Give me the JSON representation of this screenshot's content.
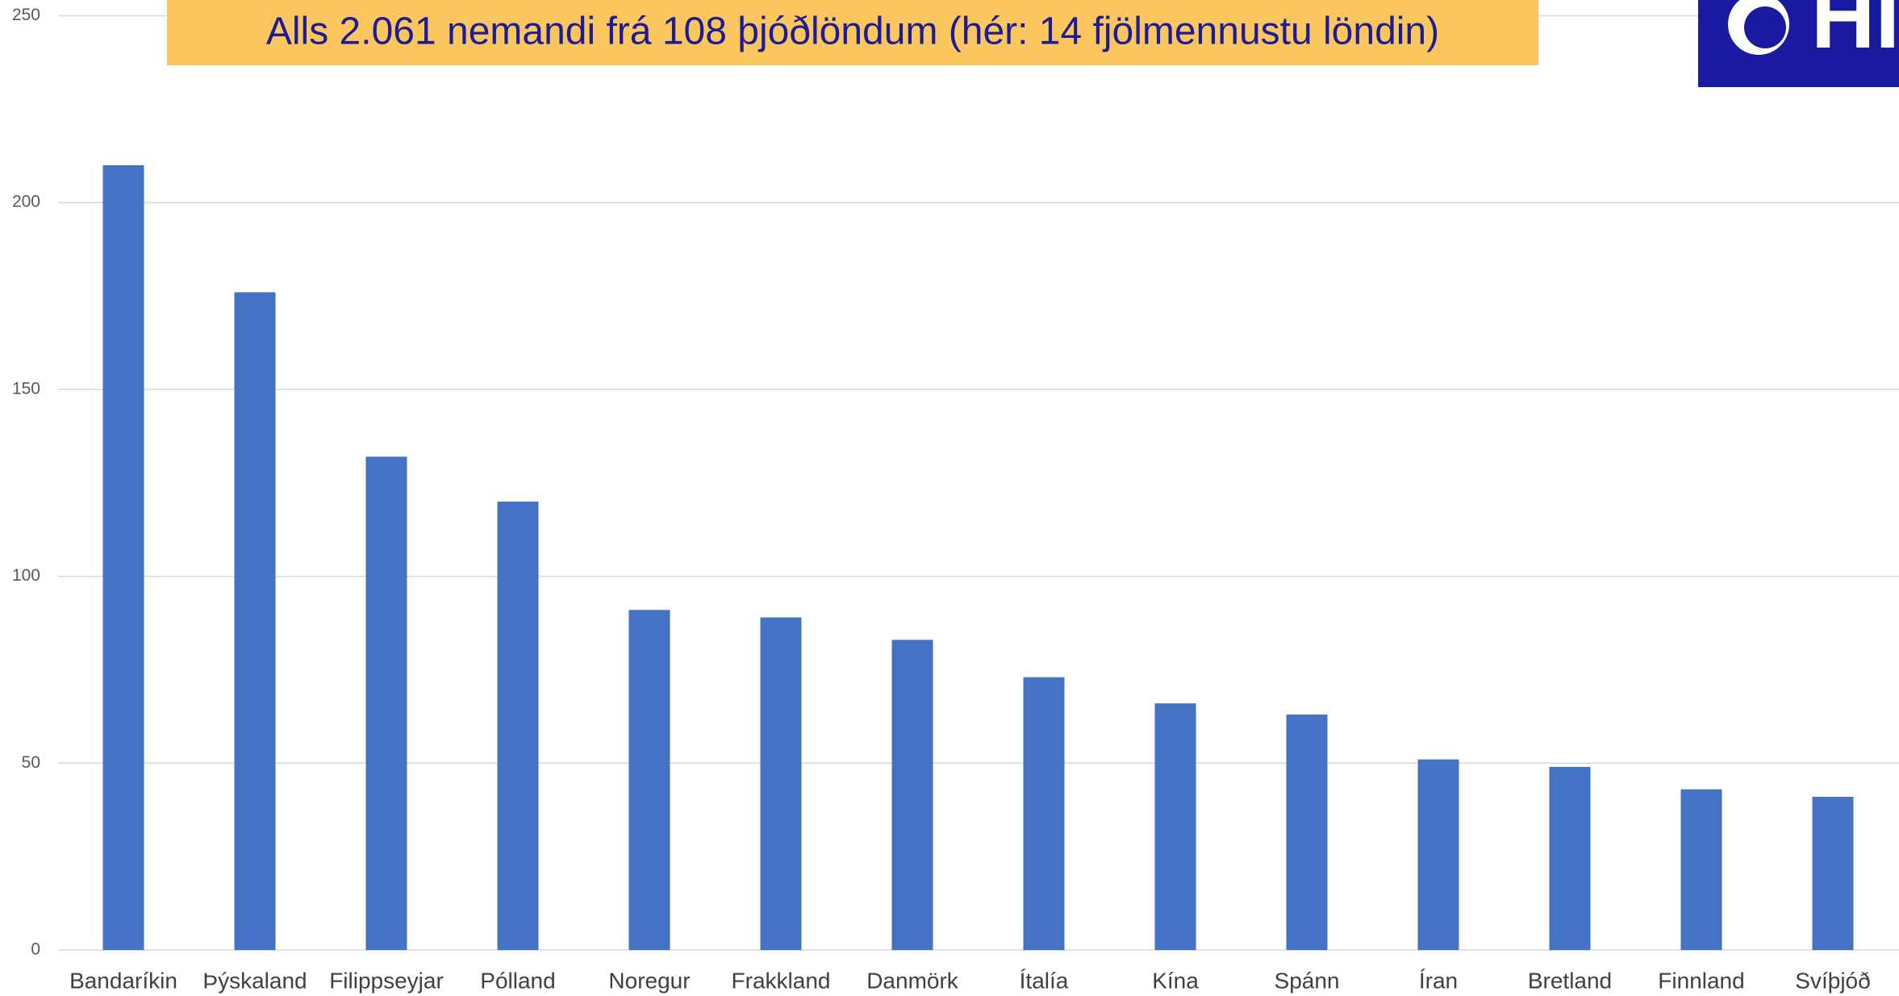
{
  "chart_data": {
    "type": "bar",
    "title": "Alls 2.061 nemandi frá 108 þjóðlöndum (hér: 14 fjölmennustu löndin)",
    "logo": "HÍ",
    "categories": [
      "Bandaríkin",
      "Þýskaland",
      "Filippseyjar",
      "Pólland",
      "Noregur",
      "Frakkland",
      "Danmörk",
      "Ítalía",
      "Kína",
      "Spánn",
      "Íran",
      "Bretland",
      "Finnland",
      "Svíþjóð"
    ],
    "values": [
      210,
      176,
      132,
      120,
      91,
      89,
      83,
      73,
      66,
      63,
      51,
      49,
      43,
      41
    ],
    "color": "#4472c4",
    "ylim": [
      0,
      250
    ],
    "yticks": [
      0,
      50,
      100,
      150,
      200,
      250
    ],
    "grid": true
  }
}
